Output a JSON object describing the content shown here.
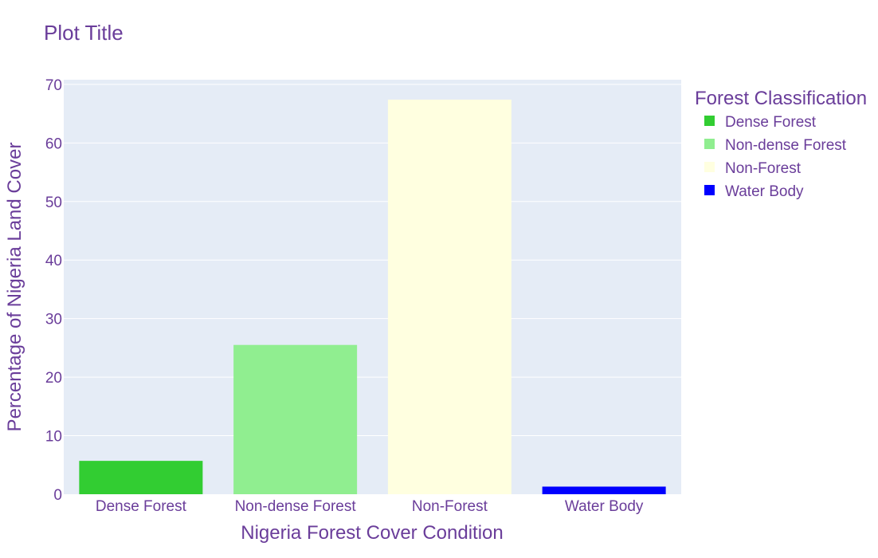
{
  "chart_data": {
    "type": "bar",
    "title": "Plot Title",
    "xlabel": "Nigeria Forest Cover Condition",
    "ylabel": "Percentage of Nigeria Land Cover",
    "categories": [
      "Dense Forest",
      "Non-dense Forest",
      "Non-Forest",
      "Water Body"
    ],
    "values": [
      5.7,
      25.5,
      67.4,
      1.3
    ],
    "colors": [
      "#32cd32",
      "#90ee90",
      "#ffffe0",
      "#0000ff"
    ],
    "ylim": [
      0,
      70.8
    ],
    "yticks": [
      0,
      10,
      20,
      30,
      40,
      50,
      60,
      70
    ],
    "grid": true,
    "legend": {
      "title": "Forest Classification",
      "placement": "right",
      "entries": [
        "Dense Forest",
        "Non-dense Forest",
        "Non-Forest",
        "Water Body"
      ]
    }
  },
  "style": {
    "text_color": "#6a3d9a",
    "plot_bg": "#e5ecf6",
    "grid_color": "#ffffff"
  }
}
